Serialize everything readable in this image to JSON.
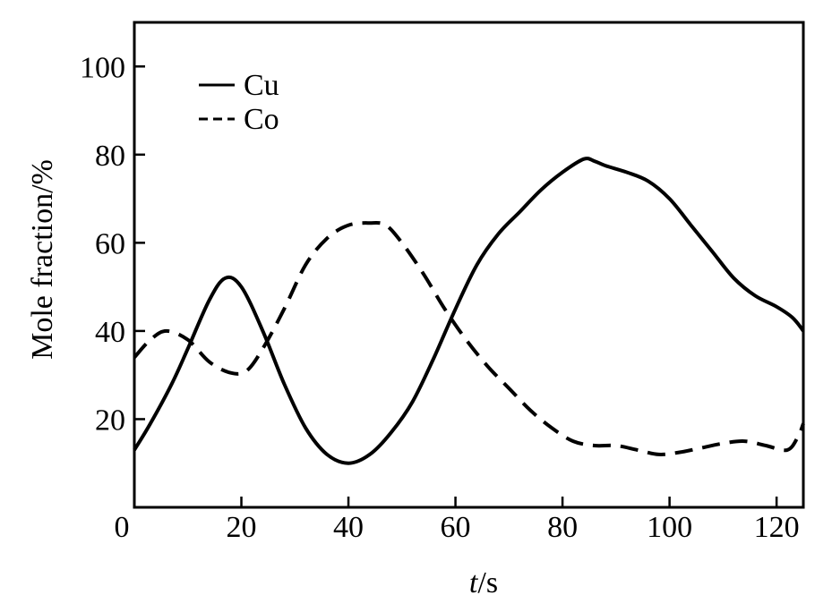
{
  "chart_data": {
    "type": "line",
    "title": "",
    "xlabel_italic": "t",
    "xlabel_rest": "/s",
    "ylabel": "Mole fraction/%",
    "xlim": [
      0,
      125
    ],
    "ylim": [
      0,
      110
    ],
    "x_ticks": [
      0,
      20,
      40,
      60,
      80,
      100,
      120
    ],
    "y_ticks": [
      20,
      40,
      60,
      80,
      100
    ],
    "x_tick_labels": [
      "0",
      "20",
      "40",
      "60",
      "80",
      "100",
      "120"
    ],
    "y_tick_labels": [
      "20",
      "40",
      "60",
      "80",
      "100"
    ],
    "grid": false,
    "legend_position": "top-left",
    "series": [
      {
        "name": "Cu",
        "style": "solid",
        "color": "#000000",
        "x": [
          0,
          3,
          7,
          10,
          14,
          17,
          20,
          24,
          28,
          32,
          36,
          40,
          44,
          48,
          52,
          56,
          60,
          64,
          68,
          72,
          76,
          80,
          84,
          86,
          88,
          92,
          96,
          100,
          104,
          108,
          112,
          116,
          120,
          123,
          125
        ],
        "y": [
          13,
          19,
          28,
          36,
          47,
          52,
          50,
          40,
          28,
          18,
          12,
          10,
          12,
          17,
          24,
          34,
          45,
          55,
          62,
          67,
          72,
          76,
          79,
          78.5,
          77.5,
          76,
          74,
          70,
          64,
          58,
          52,
          48,
          45.5,
          43,
          40
        ]
      },
      {
        "name": "Co",
        "style": "dashed",
        "color": "#000000",
        "x": [
          0,
          3,
          6,
          10,
          14,
          18,
          21,
          24,
          28,
          32,
          36,
          40,
          44,
          47,
          50,
          54,
          58,
          62,
          66,
          70,
          74,
          78,
          82,
          86,
          90,
          94,
          98,
          102,
          106,
          110,
          114,
          118,
          122,
          124,
          125
        ],
        "y": [
          34,
          38,
          40,
          38,
          33,
          30.5,
          31,
          36,
          45,
          55,
          61,
          64,
          64.5,
          64,
          60,
          53,
          45,
          38,
          32,
          27,
          22,
          18,
          15,
          14,
          14,
          13,
          12,
          12.5,
          13.5,
          14.5,
          15,
          14,
          13,
          16,
          19
        ]
      }
    ]
  }
}
